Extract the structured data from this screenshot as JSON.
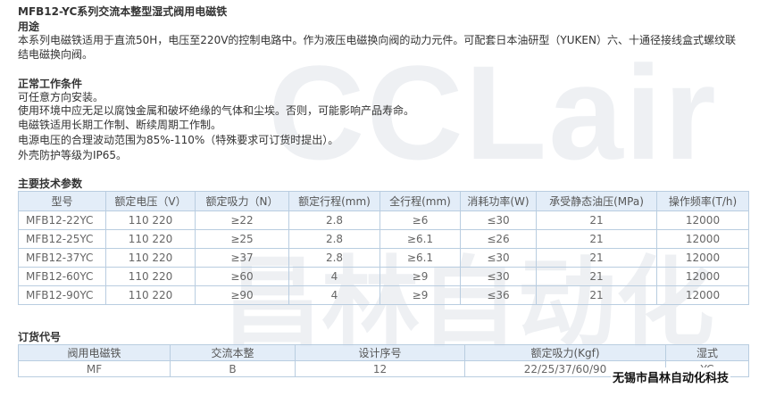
{
  "header": {
    "title": "MFB12-YC系列交流本整型湿式阀用电磁铁"
  },
  "usage": {
    "heading": "用途",
    "text": "本系列电磁铁适用于直流50H，电压至220V的控制电路中。作为液压电磁换向阀的动力元件。可配套日本油研型（YUKEN）六、十通径接线盒式螺纹联结电磁换向阀。"
  },
  "conditions": {
    "heading": "正常工作条件",
    "lines": [
      "可任意方向安装。",
      "使用环境中应无足以腐蚀金属和破坏绝缘的气体和尘埃。否则，可能影响产品寿命。",
      "电磁铁适用长期工作制、断续周期工作制。",
      "电源电压的合理波动范围为85%-110%（特殊要求可订货时提出）。",
      "外壳防护等级为IP65。"
    ]
  },
  "specs": {
    "heading": "主要技术参数",
    "table": {
      "header": [
        "型号",
        "额定电压（V）",
        "额定吸力（N）",
        "额定行程(mm)",
        "全行程(mm)",
        "消耗功率(W)",
        "承受静态油压(MPa)",
        "操作频率(T/h)"
      ],
      "rows": [
        [
          "MFB12-22YC",
          "110 220",
          "≥22",
          "2.8",
          "≥6",
          "≤30",
          "21",
          "12000"
        ],
        [
          "MFB12-25YC",
          "110 220",
          "≥25",
          "2.8",
          "≥6.1",
          "≤26",
          "21",
          "12000"
        ],
        [
          "MFB12-37YC",
          "110 220",
          "≥37",
          "2.8",
          "≥6.1",
          "≤30",
          "21",
          "12000"
        ],
        [
          "MFB12-60YC",
          "110 220",
          "≥60",
          "4",
          "≥9",
          "≤30",
          "21",
          "12000"
        ],
        [
          "MFB12-90YC",
          "110 220",
          "≥90",
          "4",
          "≥9",
          "≤36",
          "21",
          "12000"
        ]
      ]
    }
  },
  "order": {
    "heading": "订货代号",
    "table": {
      "header": [
        "阀用电磁铁",
        "交流本整",
        "设计序号",
        "额定吸力(Kgf)",
        "湿式"
      ],
      "rows": [
        [
          "MF",
          "B",
          "12",
          "22/25/37/60/90",
          "YC"
        ]
      ]
    }
  },
  "watermark": {
    "logo": "CCLair",
    "company_faint": "昌林自动化",
    "company": "无锡市昌林自动化科技"
  }
}
